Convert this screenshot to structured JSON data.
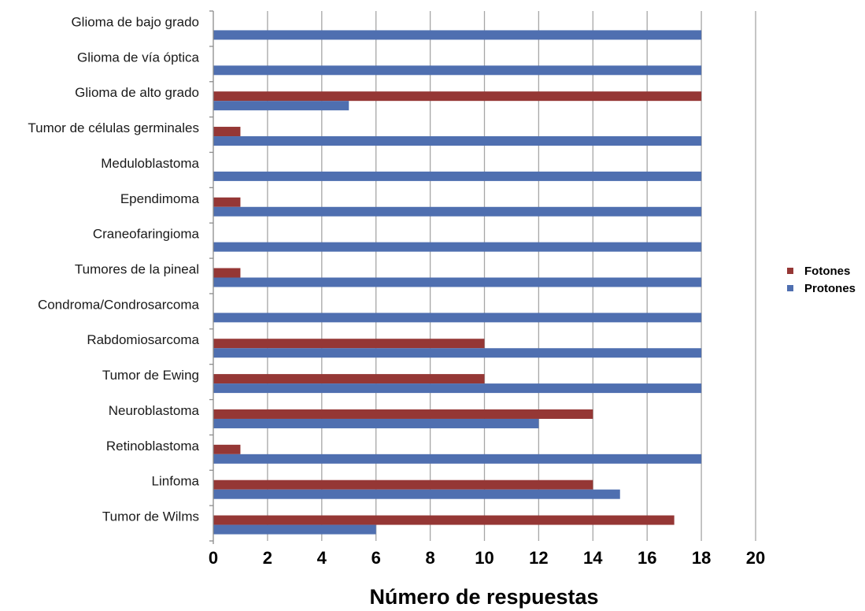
{
  "chart_data": {
    "type": "bar",
    "orientation": "horizontal",
    "categories": [
      "Glioma de bajo grado",
      "Glioma de vía óptica",
      "Glioma de alto grado",
      "Tumor de células germinales",
      "Meduloblastoma",
      "Ependimoma",
      "Craneofaringioma",
      "Tumores de la pineal",
      "Condroma/Condrosarcoma",
      "Rabdomiosarcoma",
      "Tumor de Ewing",
      "Neuroblastoma",
      "Retinoblastoma",
      "Linfoma",
      "Tumor de Wilms"
    ],
    "series": [
      {
        "name": "Fotones",
        "color": "#953735",
        "values": [
          0,
          0,
          18,
          1,
          0,
          1,
          0,
          1,
          0,
          10,
          10,
          14,
          1,
          14,
          17
        ]
      },
      {
        "name": "Protones",
        "color": "#4f6fb0",
        "values": [
          18,
          18,
          5,
          18,
          18,
          18,
          18,
          18,
          18,
          18,
          18,
          12,
          18,
          15,
          6
        ]
      }
    ],
    "xlabel": "Número de respuestas",
    "ylabel": "",
    "xlim": [
      0,
      20
    ],
    "xticks": [
      "0",
      "2",
      "4",
      "6",
      "8",
      "10",
      "12",
      "14",
      "16",
      "18",
      "20"
    ],
    "grid": true,
    "legend": "right"
  }
}
